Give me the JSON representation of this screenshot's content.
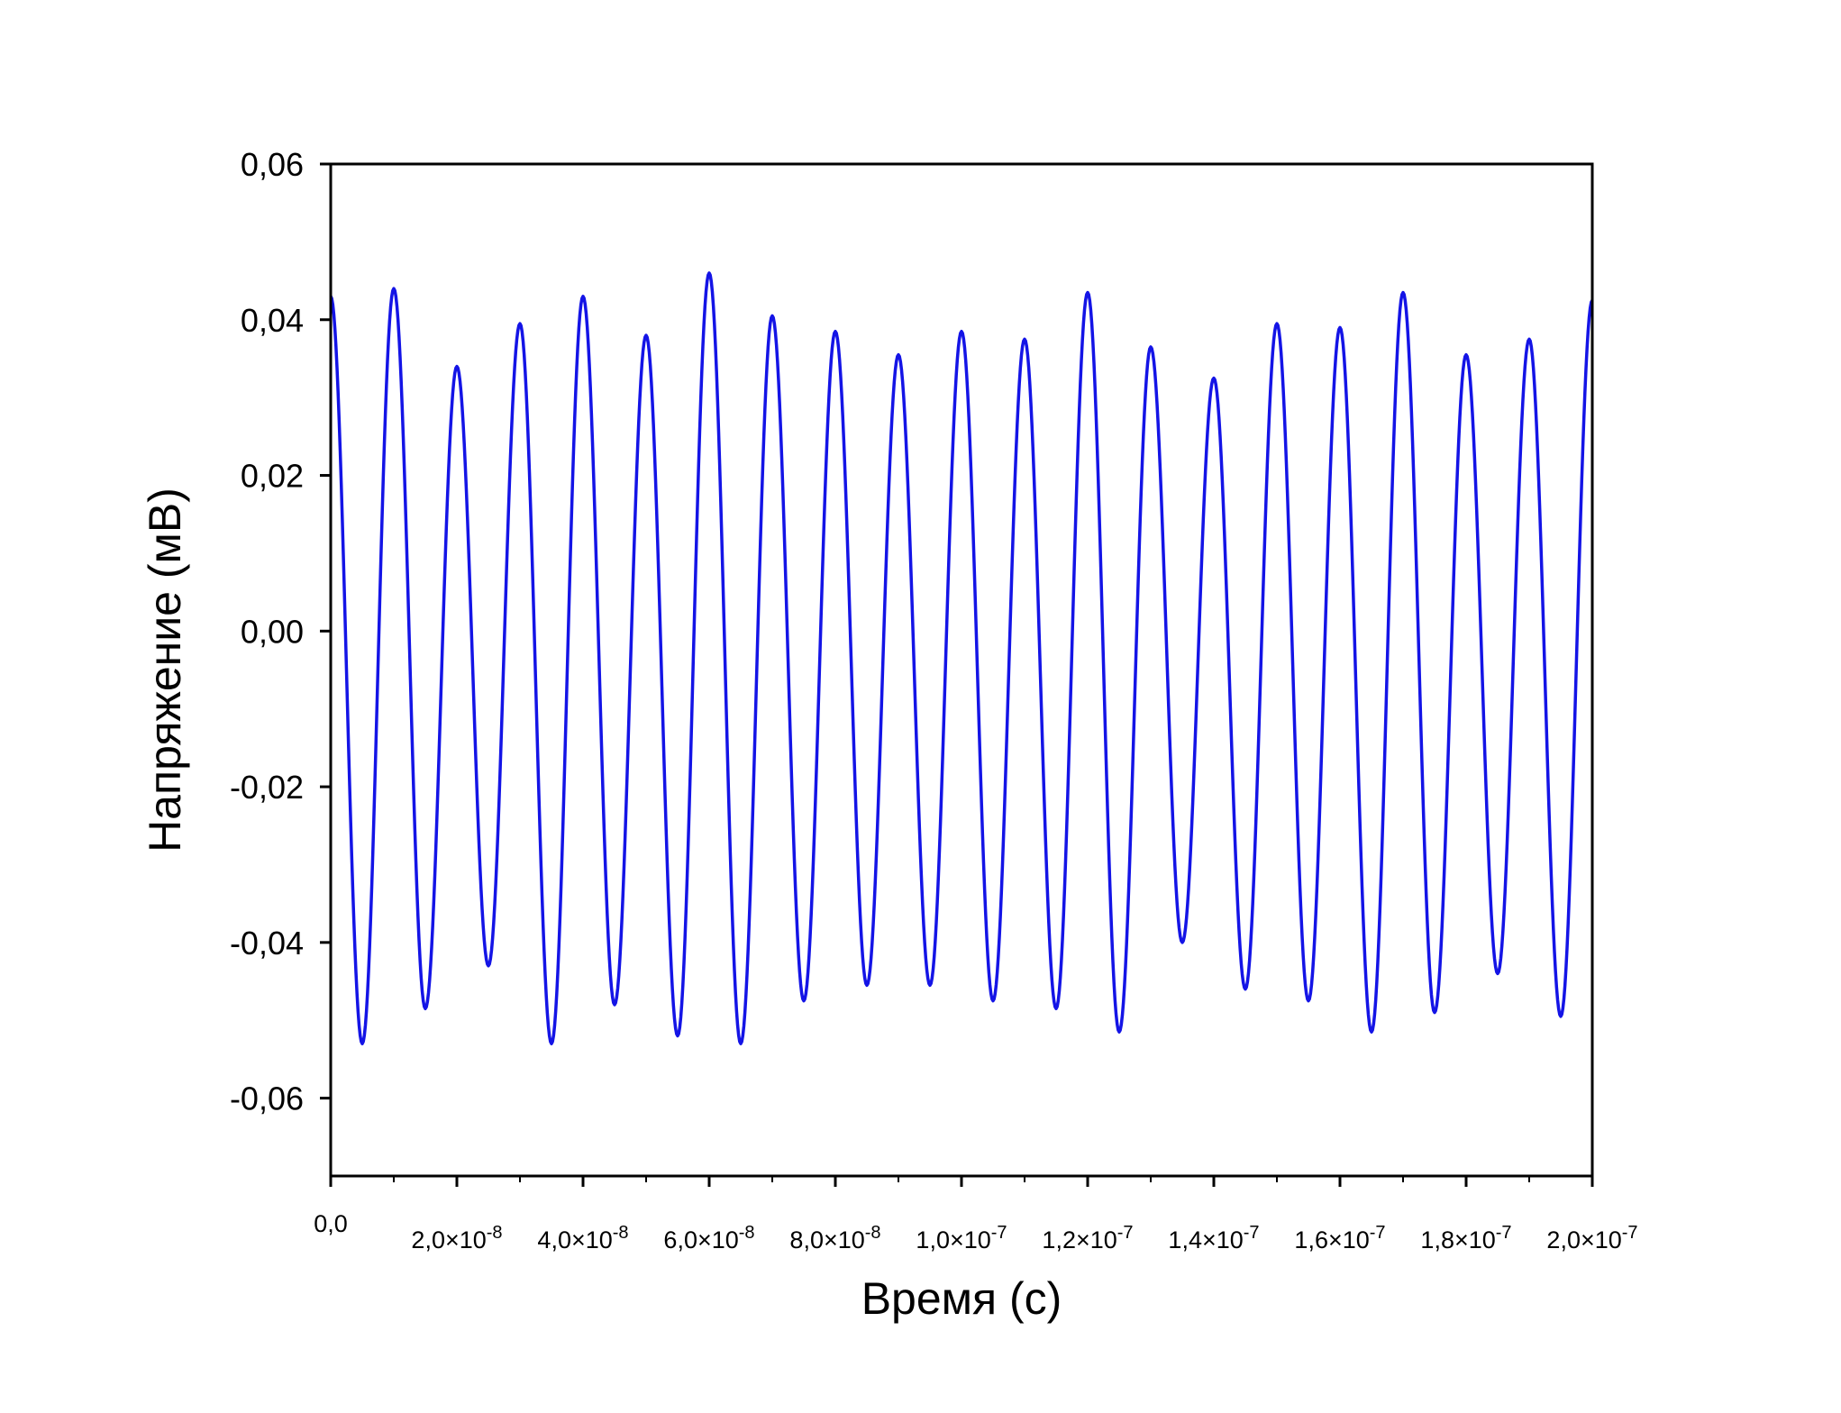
{
  "chart_data": {
    "type": "line",
    "xlabel": "Время (с)",
    "ylabel": "Напряжение (мВ)",
    "xlim": [
      0,
      2e-07
    ],
    "ylim": [
      -0.07,
      0.06
    ],
    "grid": false,
    "line_color": "#1414e6",
    "y_ticks": [
      {
        "value": 0.06,
        "label": "0,06"
      },
      {
        "value": 0.04,
        "label": "0,04"
      },
      {
        "value": 0.02,
        "label": "0,02"
      },
      {
        "value": 0.0,
        "label": "0,00"
      },
      {
        "value": -0.02,
        "label": "-0,02"
      },
      {
        "value": -0.04,
        "label": "-0,04"
      },
      {
        "value": -0.06,
        "label": "-0,06"
      }
    ],
    "x_ticks": [
      {
        "value": 0,
        "label": "0,0",
        "mant": "0,0",
        "exp": ""
      },
      {
        "value": 2e-08,
        "label": "2,0×10-8",
        "mant": "2,0×10",
        "exp": "-8"
      },
      {
        "value": 4e-08,
        "label": "4,0×10-8",
        "mant": "4,0×10",
        "exp": "-8"
      },
      {
        "value": 6e-08,
        "label": "6,0×10-8",
        "mant": "6,0×10",
        "exp": "-8"
      },
      {
        "value": 8e-08,
        "label": "8,0×10-8",
        "mant": "8,0×10",
        "exp": "-8"
      },
      {
        "value": 1e-07,
        "label": "1,0×10-7",
        "mant": "1,0×10",
        "exp": "-7"
      },
      {
        "value": 1.2e-07,
        "label": "1,2×10-7",
        "mant": "1,2×10",
        "exp": "-7"
      },
      {
        "value": 1.4e-07,
        "label": "1,4×10-7",
        "mant": "1,4×10",
        "exp": "-7"
      },
      {
        "value": 1.6e-07,
        "label": "1,6×10-7",
        "mant": "1,6×10",
        "exp": "-7"
      },
      {
        "value": 1.8e-07,
        "label": "1,8×10-7",
        "mant": "1,8×10",
        "exp": "-7"
      },
      {
        "value": 2e-07,
        "label": "2,0×10-7",
        "mant": "2,0×10",
        "exp": "-7"
      }
    ],
    "series": [
      {
        "x": [
          0,
          5e-09,
          1e-08,
          1.5e-08,
          2e-08,
          2.5e-08,
          3e-08,
          3.5e-08,
          4e-08,
          4.5e-08,
          5e-08,
          5.5e-08,
          6e-08,
          6.5e-08,
          7e-08,
          7.5e-08,
          8e-08,
          8.5e-08,
          9e-08,
          9.5e-08,
          1e-07,
          1.05e-07,
          1.1e-07,
          1.15e-07,
          1.2e-07,
          1.25e-07,
          1.3e-07,
          1.35e-07,
          1.4e-07,
          1.45e-07,
          1.5e-07,
          1.55e-07,
          1.6e-07,
          1.65e-07,
          1.7e-07,
          1.75e-07,
          1.8e-07,
          1.85e-07,
          1.9e-07,
          1.95e-07,
          2e-07
        ],
        "y": [
          0.043,
          -0.053,
          0.044,
          -0.0485,
          0.034,
          -0.043,
          0.0395,
          -0.053,
          0.043,
          -0.048,
          0.038,
          -0.052,
          0.046,
          -0.053,
          0.0405,
          -0.0475,
          0.0385,
          -0.0455,
          0.0355,
          -0.0455,
          0.0385,
          -0.0475,
          0.0375,
          -0.0485,
          0.0435,
          -0.0515,
          0.0365,
          -0.04,
          0.0325,
          -0.046,
          0.0395,
          -0.0475,
          0.039,
          -0.0515,
          0.0435,
          -0.049,
          0.0355,
          -0.044,
          0.0375,
          -0.0495,
          0.0425
        ]
      }
    ]
  }
}
